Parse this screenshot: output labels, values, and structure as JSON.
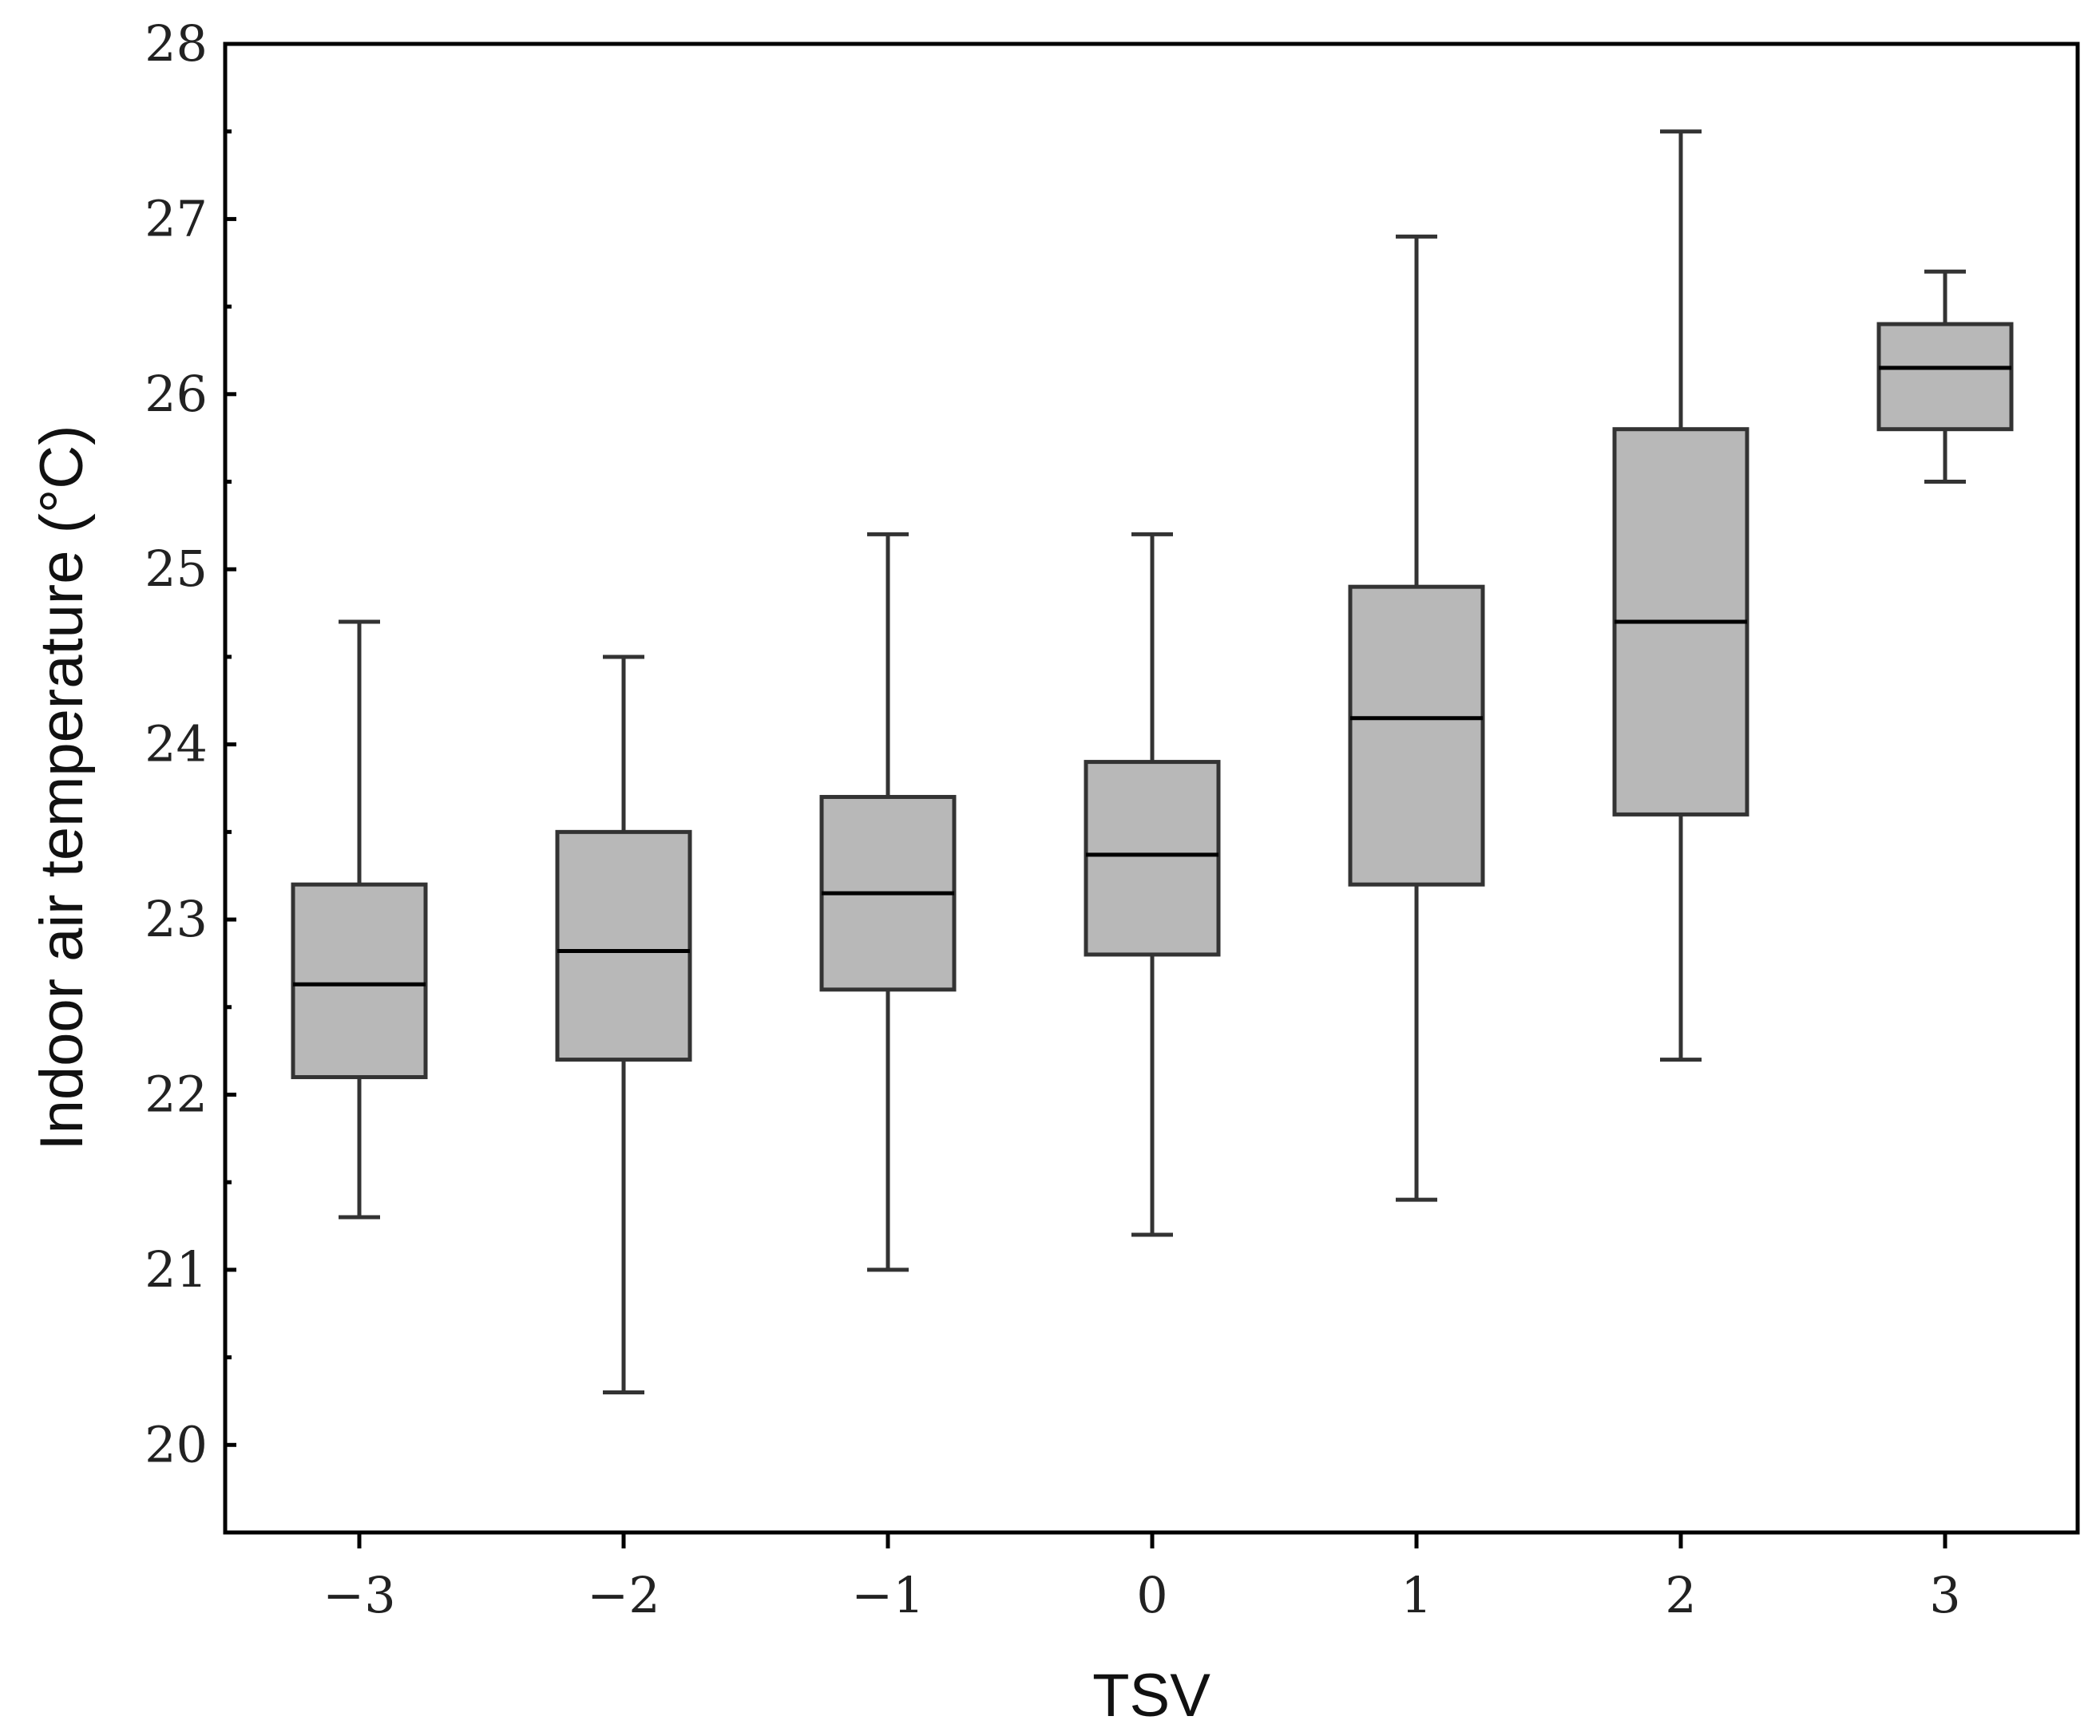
{
  "chart_data": {
    "type": "boxplot",
    "title": "",
    "xlabel": "TSV",
    "ylabel": "Indoor air temperature (°C)",
    "ylim": [
      19.5,
      28
    ],
    "yticks": [
      20,
      21,
      22,
      23,
      24,
      25,
      26,
      27,
      28
    ],
    "ytick_labels": [
      "20",
      "21",
      "22",
      "23",
      "24",
      "25",
      "26",
      "27",
      "28"
    ],
    "y_minor_step": 0.5,
    "categories": [
      -3,
      -2,
      -1,
      0,
      1,
      2,
      3
    ],
    "category_labels": [
      "−3",
      "−2",
      "−1",
      "0",
      "1",
      "2",
      "3"
    ],
    "boxes": [
      {
        "category": -3,
        "whisker_low": 21.3,
        "q1": 22.1,
        "median": 22.63,
        "q3": 23.2,
        "whisker_high": 24.7
      },
      {
        "category": -2,
        "whisker_low": 20.3,
        "q1": 22.2,
        "median": 22.82,
        "q3": 23.5,
        "whisker_high": 24.5
      },
      {
        "category": -1,
        "whisker_low": 21.0,
        "q1": 22.6,
        "median": 23.15,
        "q3": 23.7,
        "whisker_high": 25.2
      },
      {
        "category": 0,
        "whisker_low": 21.2,
        "q1": 22.8,
        "median": 23.37,
        "q3": 23.9,
        "whisker_high": 25.2
      },
      {
        "category": 1,
        "whisker_low": 21.4,
        "q1": 23.2,
        "median": 24.15,
        "q3": 24.9,
        "whisker_high": 26.9
      },
      {
        "category": 2,
        "whisker_low": 22.2,
        "q1": 23.6,
        "median": 24.7,
        "q3": 25.8,
        "whisker_high": 27.5
      },
      {
        "category": 3,
        "whisker_low": 25.5,
        "q1": 25.8,
        "median": 26.15,
        "q3": 26.4,
        "whisker_high": 26.7
      }
    ],
    "grid": false,
    "legend": "none",
    "colors": {
      "box_fill": "#b8b8b8",
      "box_stroke": "#333333",
      "median_line": "#000000",
      "axis": "#000000"
    }
  }
}
